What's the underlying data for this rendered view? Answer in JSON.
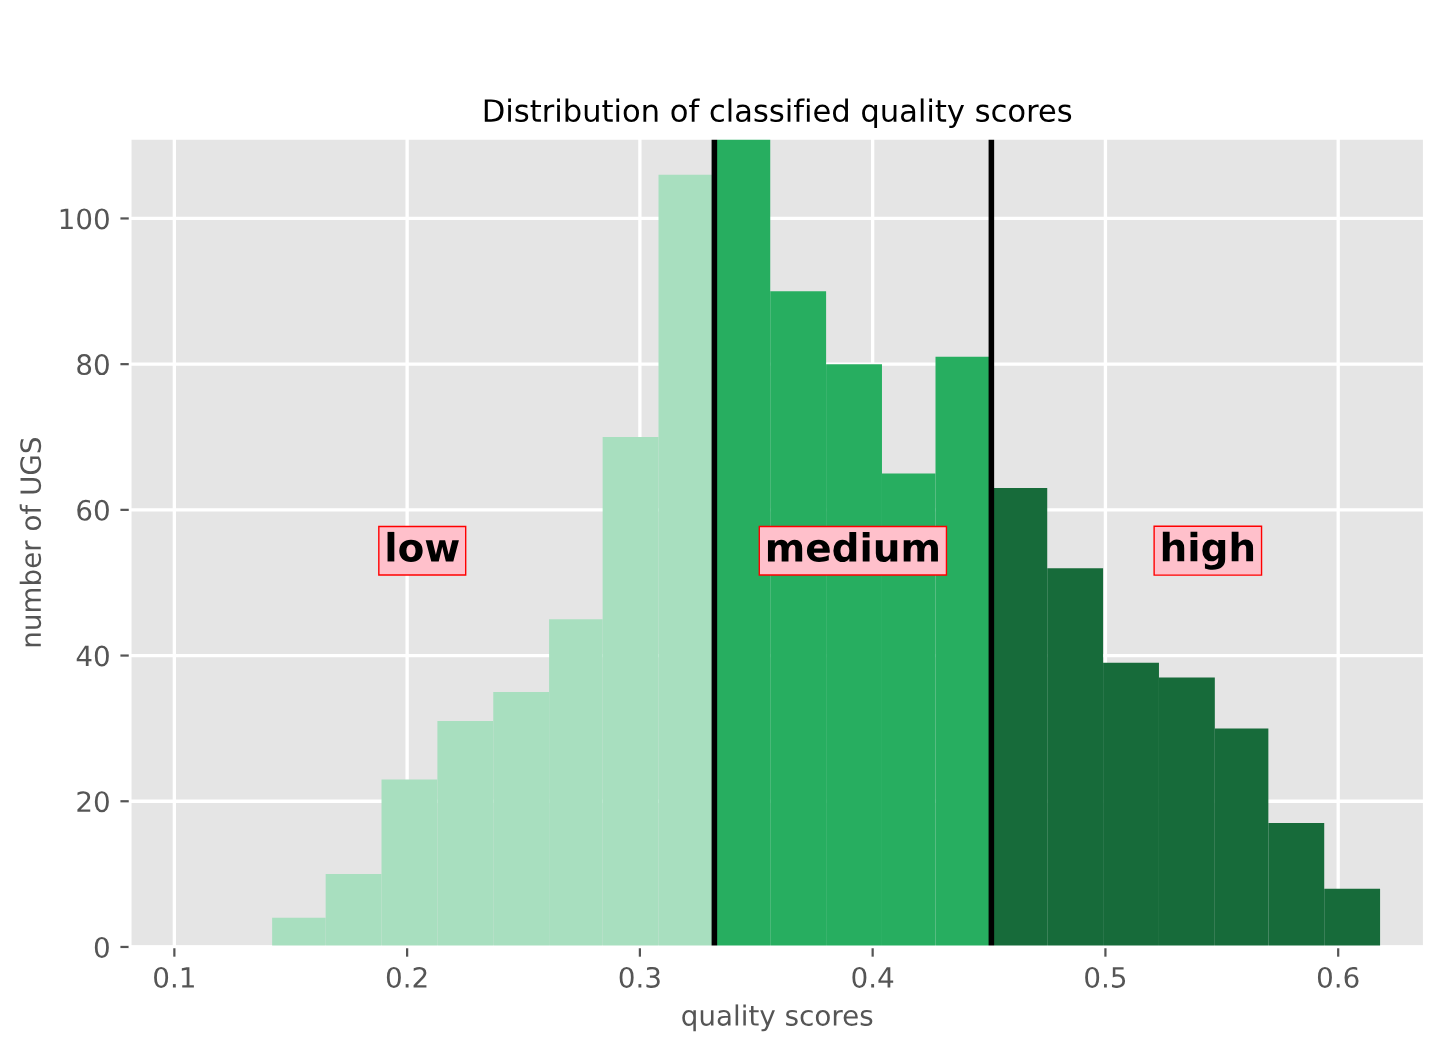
{
  "chart_data": {
    "type": "histogram",
    "title": "Distribution of classified quality scores",
    "xlabel": "quality scores",
    "ylabel": "number of UGS",
    "bins": [
      0.142,
      0.165,
      0.189,
      0.213,
      0.237,
      0.261,
      0.284,
      0.308,
      0.332,
      0.356,
      0.38,
      0.404,
      0.427,
      0.451,
      0.475,
      0.499,
      0.523,
      0.547,
      0.57,
      0.594,
      0.618
    ],
    "values": [
      4,
      10,
      23,
      31,
      35,
      45,
      70,
      106,
      111,
      90,
      80,
      65,
      81,
      63,
      52,
      39,
      37,
      30,
      17,
      8
    ],
    "colors": [
      "#a8dfbf",
      "#a8dfbf",
      "#a8dfbf",
      "#a8dfbf",
      "#a8dfbf",
      "#a8dfbf",
      "#a8dfbf",
      "#a8dfbf",
      "#27ae60",
      "#27ae60",
      "#27ae60",
      "#27ae60",
      "#27ae60",
      "#176b3a",
      "#176b3a",
      "#176b3a",
      "#176b3a",
      "#176b3a",
      "#176b3a",
      "#176b3a"
    ],
    "ref_lines": [
      {
        "axis": "x",
        "value": 0.332,
        "color": "#000000"
      },
      {
        "axis": "x",
        "value": 0.451,
        "color": "#000000"
      }
    ],
    "annotations": [
      "low",
      "medium",
      "high"
    ],
    "xlim": [
      0.081,
      0.637
    ],
    "xticks": [
      0.1,
      0.2,
      0.3,
      0.4,
      0.5,
      0.6
    ],
    "ylim": [
      0,
      111
    ],
    "yticks": [
      0,
      20,
      40,
      60,
      80,
      100
    ],
    "grid": true
  }
}
